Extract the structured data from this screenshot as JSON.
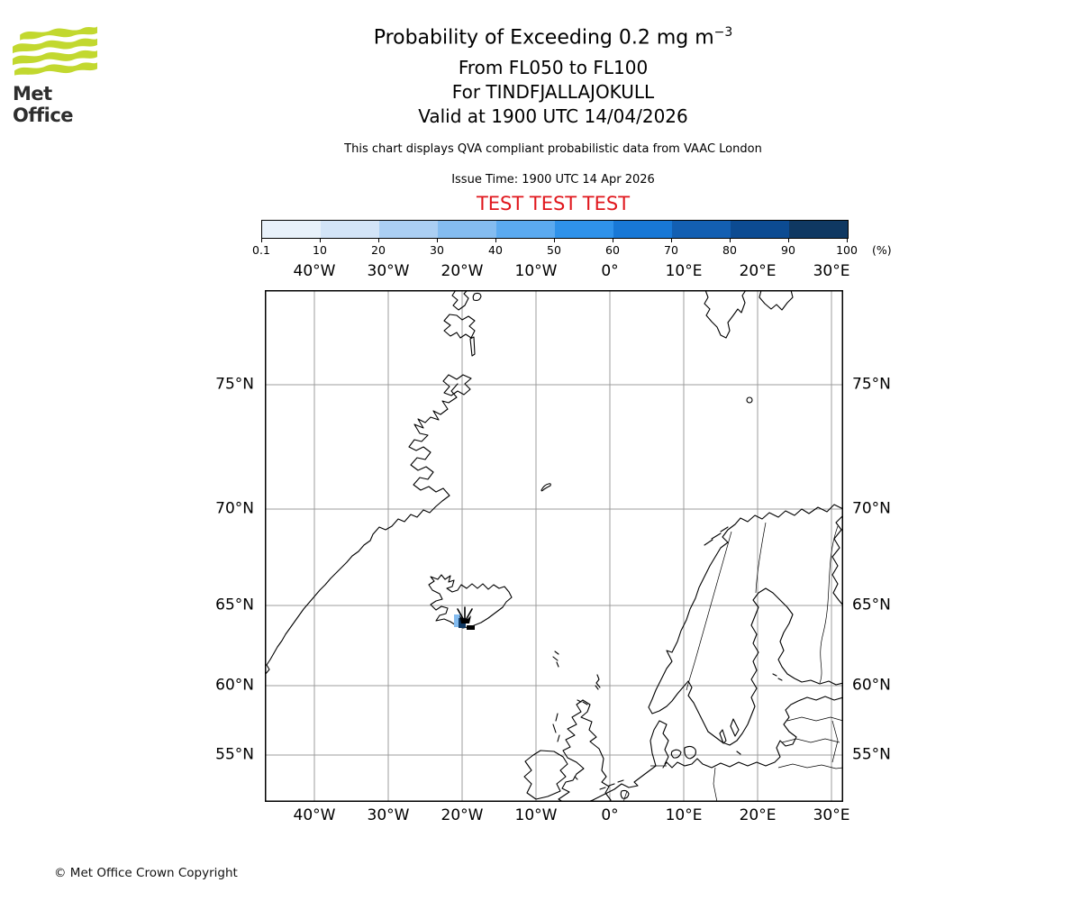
{
  "branding": {
    "logo_text": "Met Office",
    "logo_color": "#c2d82f",
    "copyright": "© Met Office Crown Copyright"
  },
  "header": {
    "title_main": "Probability of Exceeding 0.2 mg m",
    "title_sup": "−3",
    "subtitle1": "From FL050 to FL100",
    "subtitle2": "For TINDFJALLAJOKULL",
    "subtitle3": "Valid at 1900 UTC 14/04/2026",
    "qva_note": "This chart displays QVA compliant probabilistic data from VAAC London",
    "issue_time": "Issue Time: 1900 UTC 14 Apr 2026",
    "test_banner": "TEST TEST TEST",
    "test_banner_color": "#e0161c"
  },
  "colorbar": {
    "tick_labels": [
      "0.1",
      "10",
      "20",
      "30",
      "40",
      "50",
      "60",
      "70",
      "80",
      "90",
      "100"
    ],
    "unit": "(%)",
    "colors": [
      "#e8f1fa",
      "#d3e4f7",
      "#abcff3",
      "#84bcf0",
      "#5baaf0",
      "#2f92ea",
      "#1878d6",
      "#135fb2",
      "#0c4b92",
      "#0f3862"
    ]
  },
  "map": {
    "lon_labels": [
      "40°W",
      "30°W",
      "20°W",
      "10°W",
      "0°",
      "10°E",
      "20°E",
      "30°E"
    ],
    "lat_labels": [
      "75°N",
      "70°N",
      "65°N",
      "60°N",
      "55°N"
    ],
    "volcano_name": "TINDFJALLAJOKULL",
    "overlay_cells": [
      "#84bcf0",
      "#0f3862"
    ]
  }
}
